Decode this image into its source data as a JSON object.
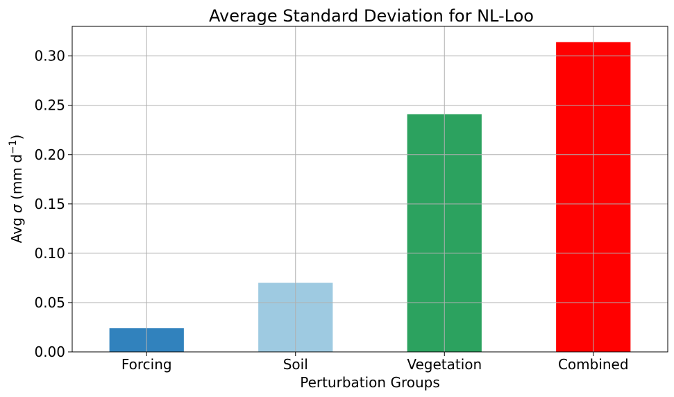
{
  "chart_data": {
    "type": "bar",
    "title": "Average Standard Deviation for NL-Loo",
    "xlabel": "Perturbation Groups",
    "ylabel": {
      "prefix": "Avg ",
      "sigma": "σ",
      "unit": " (mm d",
      "exponent": "−1",
      "close": ")"
    },
    "categories": [
      "Forcing",
      "Soil",
      "Vegetation",
      "Combined"
    ],
    "values": [
      0.024,
      0.07,
      0.241,
      0.314
    ],
    "colors": [
      "#3182bd",
      "#9ecae1",
      "#2ca25f",
      "#ff0000"
    ],
    "ylim": [
      0,
      0.33
    ],
    "yticks": [
      0.0,
      0.05,
      0.1,
      0.15,
      0.2,
      0.25,
      0.3
    ],
    "ytick_labels": [
      "0.00",
      "0.05",
      "0.10",
      "0.15",
      "0.20",
      "0.25",
      "0.30"
    ],
    "grid": true
  }
}
